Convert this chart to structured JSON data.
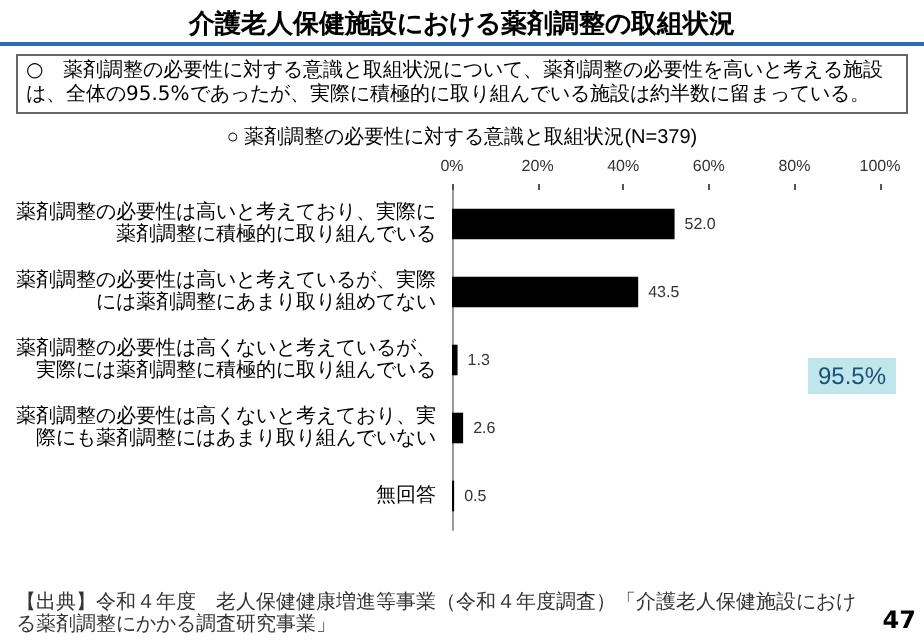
{
  "chart_data": {
    "type": "bar",
    "orientation": "horizontal",
    "title": "○ 薬剤調整の必要性に対する意識と取組状況(N=379)",
    "categories": [
      "薬剤調整の必要性は高いと考えており、実際に薬剤調整に積極的に取り組んでいる",
      "薬剤調整の必要性は高いと考えているが、実際には薬剤調整にあまり取り組めてない",
      "薬剤調整の必要性は高くないと考えているが、実際には薬剤調整に積極的に取り組んでいる",
      "薬剤調整の必要性は高くないと考えており、実際にも薬剤調整にはあまり取り組んでいない",
      "無回答"
    ],
    "values": [
      52.0,
      43.5,
      1.3,
      2.6,
      0.5
    ],
    "value_labels": [
      "52.0",
      "43.5",
      "1.3",
      "2.6",
      "0.5"
    ],
    "color": "#000000",
    "xlim": [
      0,
      100
    ],
    "xticks": [
      {
        "value": 0,
        "label": "0%"
      },
      {
        "value": 20,
        "label": "20%"
      },
      {
        "value": 40,
        "label": "40%"
      },
      {
        "value": 60,
        "label": "60%"
      },
      {
        "value": 80,
        "label": "80%"
      },
      {
        "value": 100,
        "label": "100%"
      }
    ],
    "grid": false,
    "annotations": [
      "介護老人保健施設における薬剤調整の取組状況",
      "○　薬剤調整の必要性に対する意識と取組状況について、薬剤調整の必要性を高いと考える施設は、全体の95.5%であったが、実際に積極的に取り組んでいる施設は約半数に留まっている。",
      "95.5%",
      "【出典】令和４年度　老人保健健康増進等事業（令和４年度調査）「介護老人保健施設における薬剤調整にかかる調査研究事業」",
      "47"
    ]
  }
}
